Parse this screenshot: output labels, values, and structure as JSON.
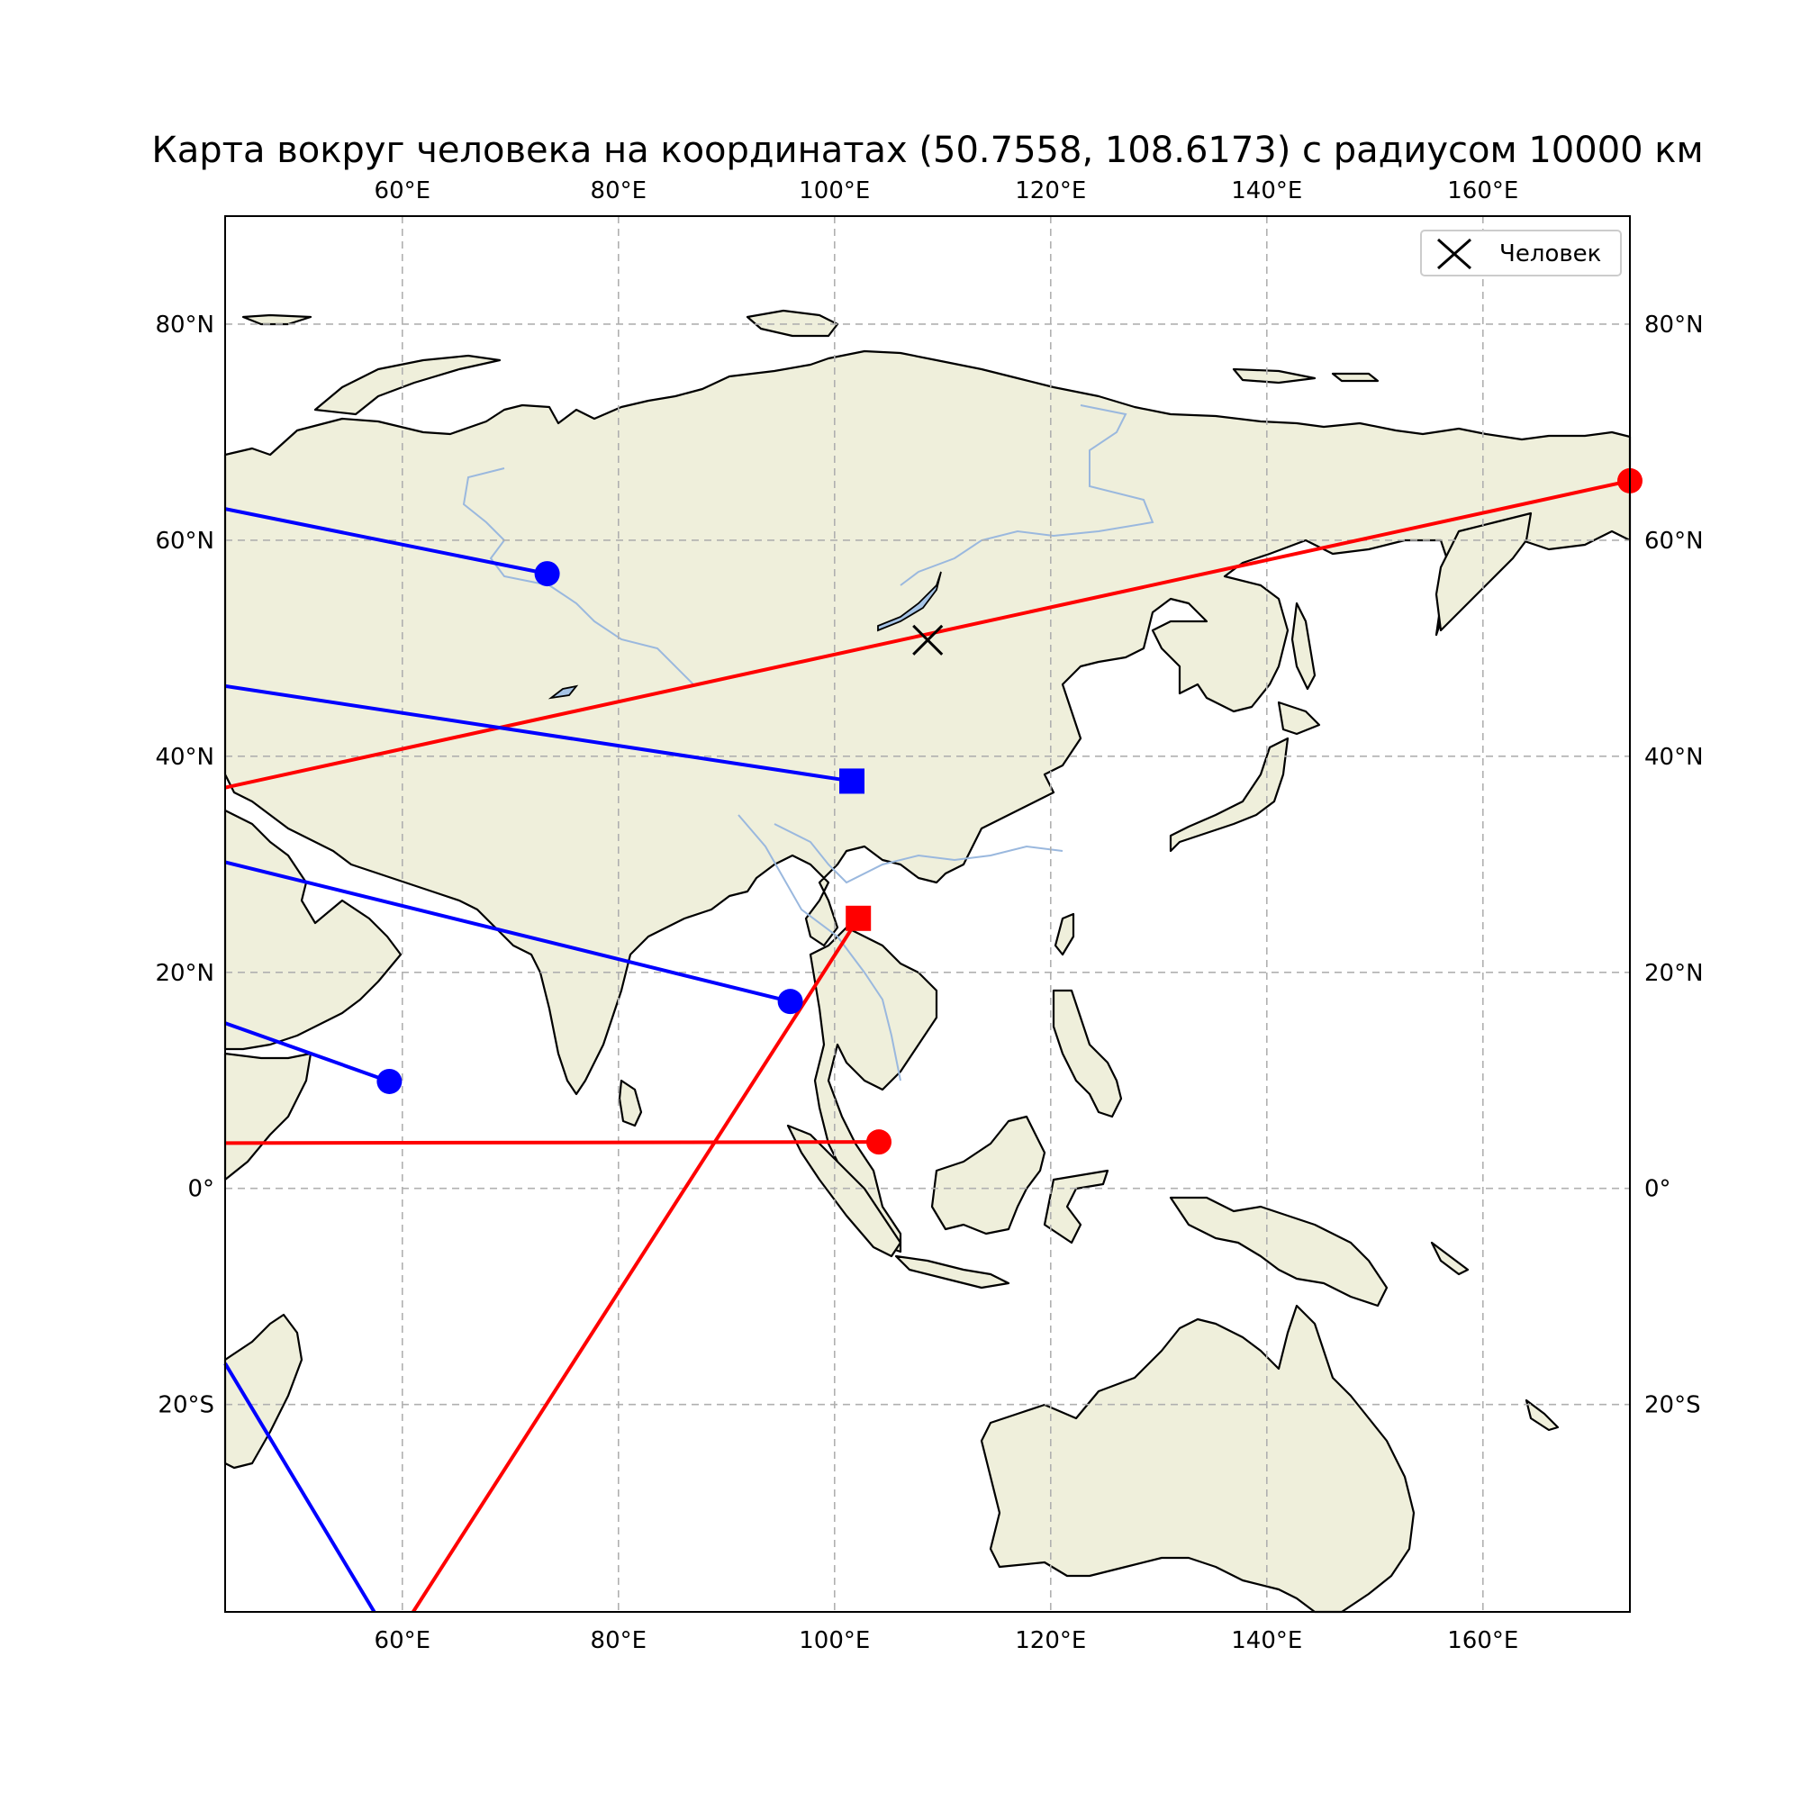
{
  "title": "Карта вокруг человека на координатах (50.7558, 108.6173) с радиусом 10000 км",
  "legend": {
    "label": "Человек",
    "icon": "x-marker-icon"
  },
  "colors": {
    "land": "#efefdb",
    "ocean": "#ffffff",
    "red": "#ff0000",
    "blue": "#0000ff",
    "river": "#9ab8de",
    "lake": "#a6c4e6"
  },
  "chart_data": {
    "type": "map",
    "projection": "PlateCarree",
    "extent": {
      "lon": [
        43.6,
        173.6
      ],
      "lat": [
        -39.2,
        90
      ]
    },
    "grid": true,
    "legend_position": "top-right",
    "x_ticks": [
      {
        "value": 60,
        "label": "60°E"
      },
      {
        "value": 80,
        "label": "80°E"
      },
      {
        "value": 100,
        "label": "100°E"
      },
      {
        "value": 120,
        "label": "120°E"
      },
      {
        "value": 140,
        "label": "140°E"
      },
      {
        "value": 160,
        "label": "160°E"
      }
    ],
    "y_ticks": [
      {
        "value": 80,
        "label": "80°N"
      },
      {
        "value": 60,
        "label": "60°N"
      },
      {
        "value": 40,
        "label": "40°N"
      },
      {
        "value": 20,
        "label": "20°N"
      },
      {
        "value": 0,
        "label": "0°"
      },
      {
        "value": -20,
        "label": "20°S"
      }
    ],
    "person": {
      "lat": 50.7558,
      "lon": 108.6173
    },
    "routes": [
      {
        "color": "red",
        "marker": "circle",
        "end": {
          "lon": 173.6,
          "lat": 65.5
        },
        "start": {
          "lon": 43.6,
          "lat": 37.1
        }
      },
      {
        "color": "red",
        "marker": "square",
        "end": {
          "lon": 102.2,
          "lat": 25.0
        },
        "start": {
          "lon": 61.0,
          "lat": -39.2
        }
      },
      {
        "color": "red",
        "marker": "circle",
        "end": {
          "lon": 104.1,
          "lat": 4.3
        },
        "start": {
          "lon": 43.6,
          "lat": 4.2
        }
      },
      {
        "color": "blue",
        "marker": "circle",
        "end": {
          "lon": 73.4,
          "lat": 56.9
        },
        "start": {
          "lon": 43.6,
          "lat": 62.9
        }
      },
      {
        "color": "blue",
        "marker": "square",
        "end": {
          "lon": 101.6,
          "lat": 37.7
        },
        "start": {
          "lon": 43.6,
          "lat": 46.5
        }
      },
      {
        "color": "blue",
        "marker": "circle",
        "end": {
          "lon": 95.9,
          "lat": 17.3
        },
        "start": {
          "lon": 43.6,
          "lat": 30.2
        }
      },
      {
        "color": "blue",
        "marker": "circle",
        "end": {
          "lon": 58.8,
          "lat": 9.9
        },
        "start": {
          "lon": 43.6,
          "lat": 15.3
        }
      },
      {
        "color": "blue",
        "marker": "none",
        "end": {
          "lon": 57.4,
          "lat": -39.2
        },
        "start": {
          "lon": 43.6,
          "lat": -16.2
        }
      }
    ]
  }
}
